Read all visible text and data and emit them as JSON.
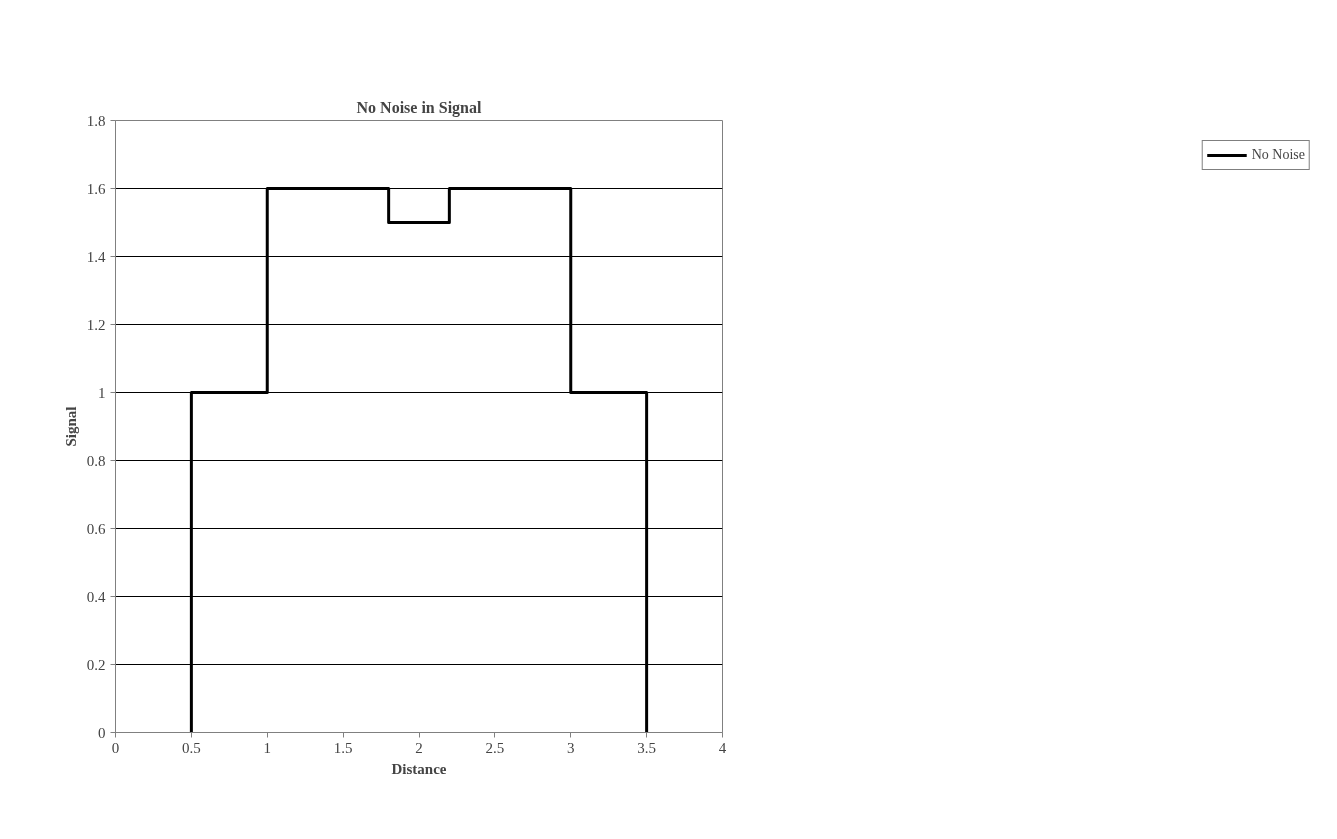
{
  "chart_data": {
    "type": "line",
    "title": "No Noise in Signal",
    "xlabel": "Distance",
    "ylabel": "Signal",
    "series": [
      {
        "name": "No Noise",
        "color": "#000000",
        "x": [
          0.5,
          0.5,
          1,
          1,
          1.8,
          1.8,
          2.2,
          2.2,
          3,
          3,
          3.5,
          3.5
        ],
        "values": [
          0,
          1,
          1,
          1.6,
          1.6,
          1.5,
          1.5,
          1.6,
          1.6,
          1,
          1,
          0
        ]
      }
    ],
    "xlim": [
      0,
      4
    ],
    "xticks": [
      0,
      0.5,
      1,
      1.5,
      2,
      2.5,
      3,
      3.5,
      4
    ],
    "ylim": [
      0,
      1.8
    ],
    "yticks": [
      0,
      0.2,
      0.4,
      0.6,
      0.8,
      1,
      1.2,
      1.4,
      1.6,
      1.8
    ],
    "grid": "y",
    "legend": "right",
    "marker": "none",
    "line_style": "solid"
  }
}
